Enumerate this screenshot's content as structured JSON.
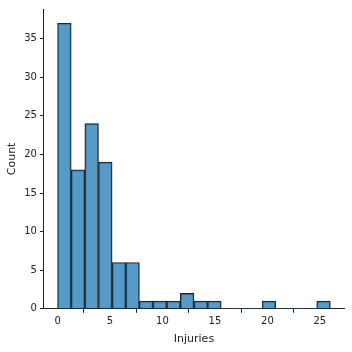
{
  "chart_data": {
    "type": "histogram",
    "xlabel": "Injuries",
    "ylabel": "Count",
    "bins": [
      0,
      1.3,
      2.6,
      3.9,
      5.2,
      6.5,
      7.8,
      9.1,
      10.4,
      11.7,
      13,
      14.3,
      15.6,
      16.9,
      18.2,
      19.5,
      20.8,
      22.1,
      23.4,
      24.7,
      26
    ],
    "counts": [
      37,
      18,
      24,
      19,
      6,
      6,
      1,
      1,
      1,
      2,
      1,
      1,
      0,
      0,
      0,
      1,
      0,
      0,
      0,
      1
    ],
    "color": "#1f77b4",
    "xlim": [
      -1.3,
      27.3
    ],
    "xticks": [
      0,
      5,
      10,
      15,
      20,
      25
    ],
    "ylim": [
      0,
      38.85
    ],
    "yticks": [
      0,
      5,
      10,
      15,
      20,
      25,
      30,
      35
    ],
    "grid": false
  }
}
